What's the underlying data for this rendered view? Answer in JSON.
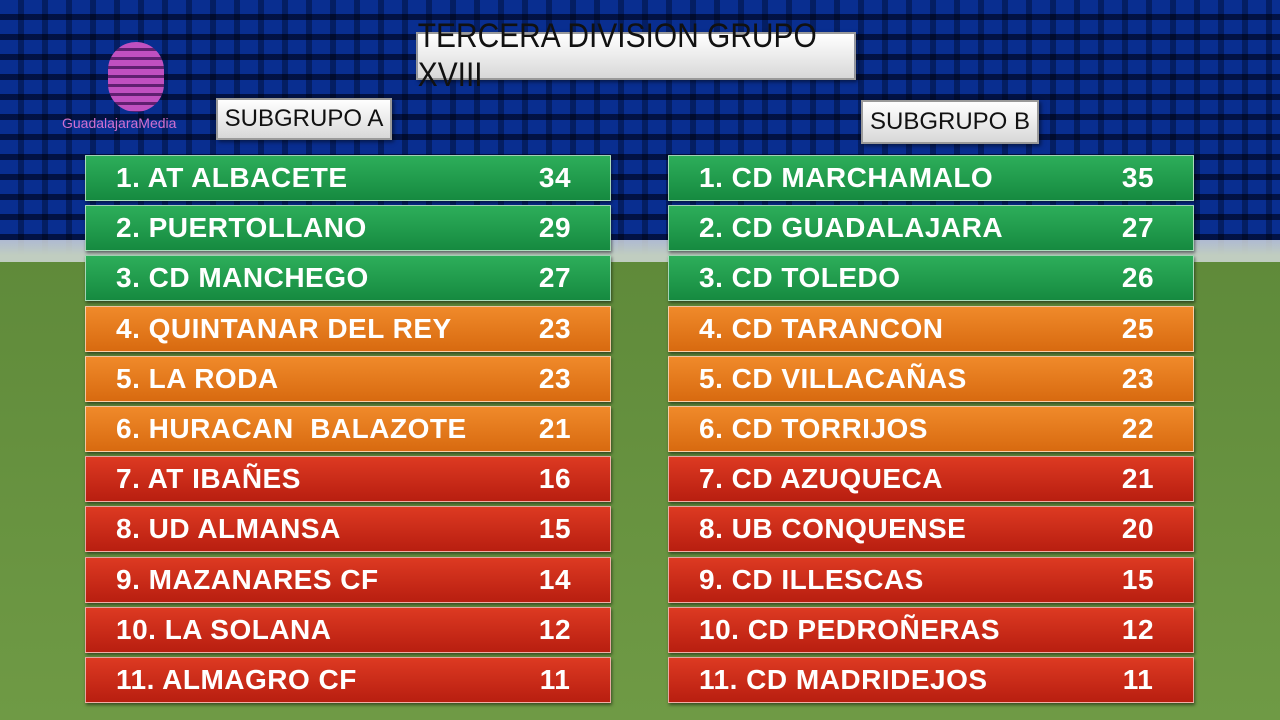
{
  "logo": "GuadalajaraMedia",
  "title": "TERCERA DIVISION GRUPO XVIII",
  "groups": [
    {
      "name": "SUBGRUPO A",
      "rows": [
        [
          "1. AT ALBACETE",
          "34"
        ],
        [
          "2. PUERTOLLANO",
          "29"
        ],
        [
          "3. CD MANCHEGO",
          "27"
        ],
        [
          "4. QUINTANAR DEL REY",
          "23"
        ],
        [
          "5. LA RODA",
          "23"
        ],
        [
          "6. HURACAN  BALAZOTE",
          "21"
        ],
        [
          "7. AT IBAÑES",
          "16"
        ],
        [
          "8. UD ALMANSA",
          "15"
        ],
        [
          "9. MAZANARES CF",
          "14"
        ],
        [
          "10. LA SOLANA",
          "12"
        ],
        [
          "11. ALMAGRO CF",
          "11"
        ]
      ]
    },
    {
      "name": "SUBGRUPO B",
      "rows": [
        [
          "1. CD MARCHAMALO",
          "35"
        ],
        [
          "2. CD GUADALAJARA",
          "27"
        ],
        [
          "3. CD TOLEDO",
          "26"
        ],
        [
          "4. CD TARANCON",
          "25"
        ],
        [
          "5. CD VILLACAÑAS",
          "23"
        ],
        [
          "6. CD TORRIJOS",
          "22"
        ],
        [
          "7. CD AZUQUECA",
          "21"
        ],
        [
          "8. UB CONQUENSE",
          "20"
        ],
        [
          "9. CD ILLESCAS",
          "15"
        ],
        [
          "10. CD PEDROÑERAS",
          "12"
        ],
        [
          "11. CD MADRIDEJOS",
          "11"
        ]
      ]
    }
  ]
}
